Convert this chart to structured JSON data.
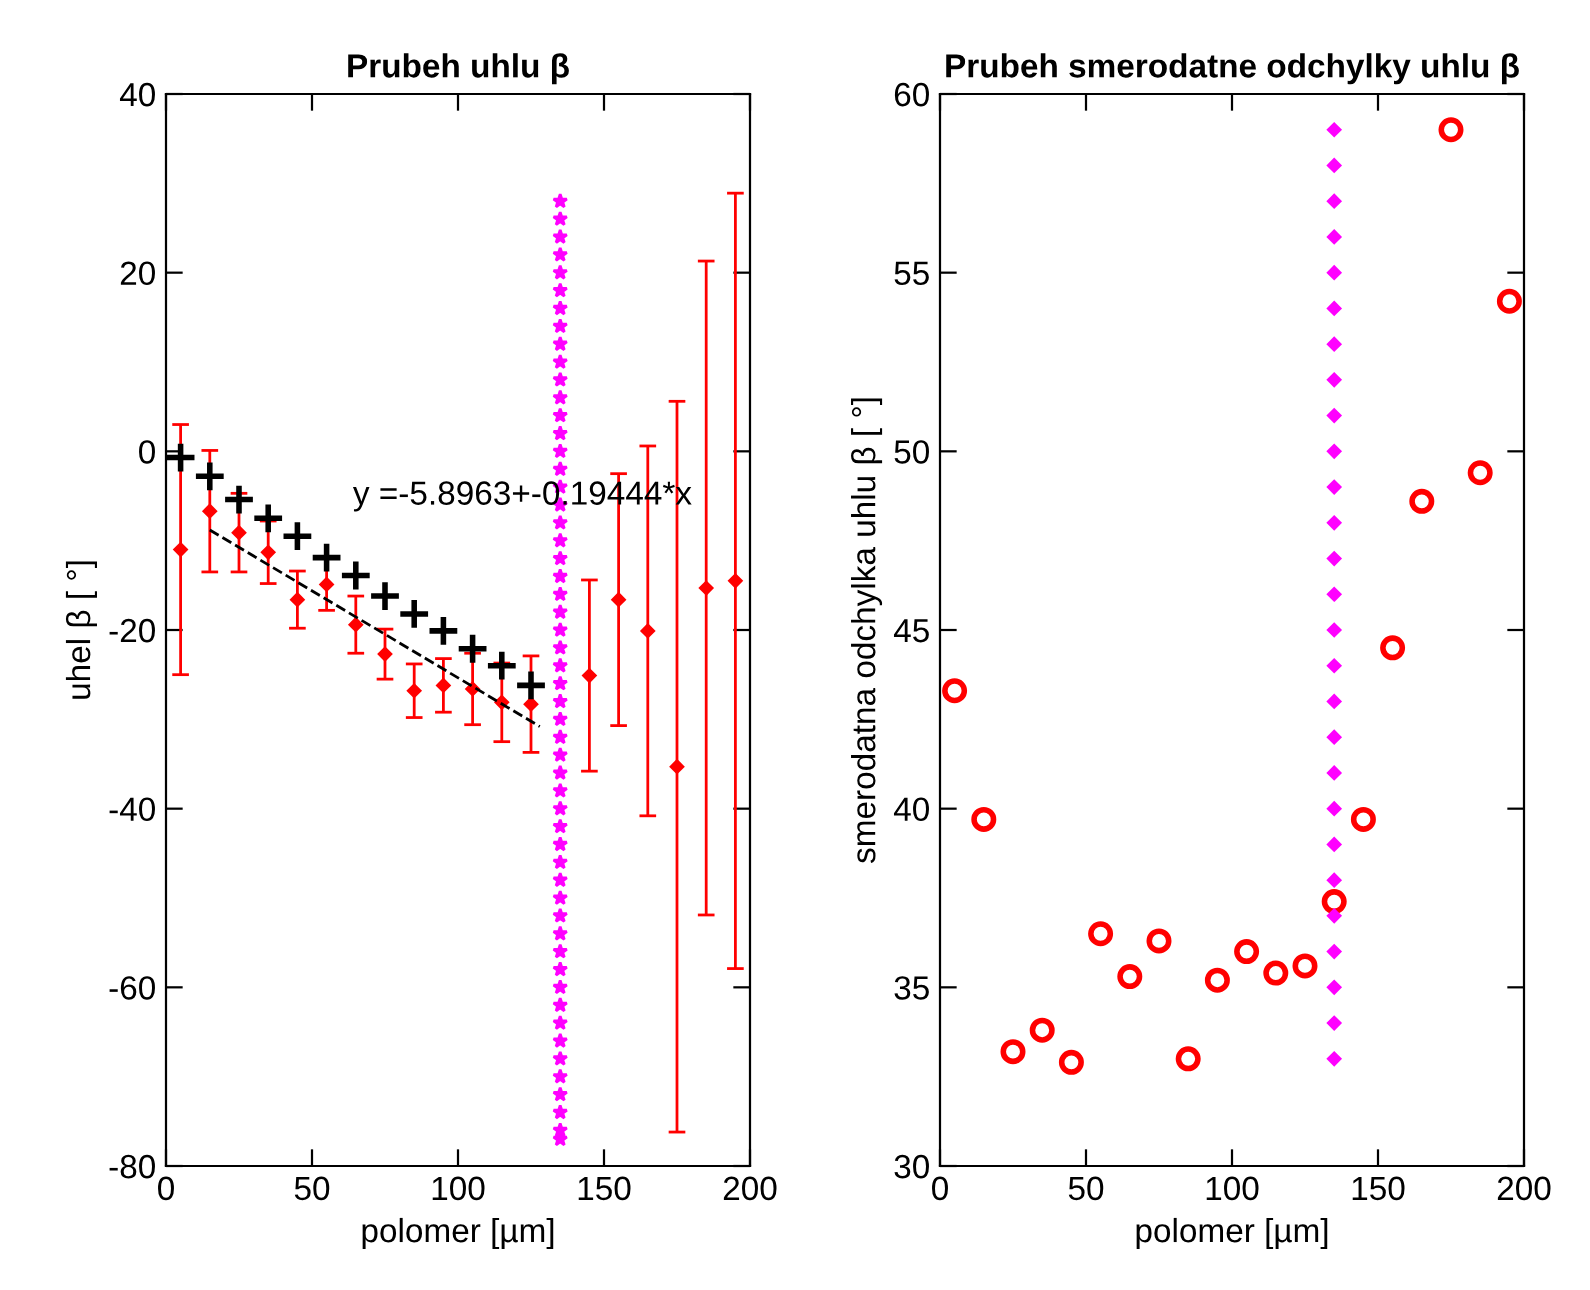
{
  "chart_data": [
    {
      "type": "scatter",
      "title": "Prubeh uhlu β",
      "xlabel": "polomer [µm]",
      "ylabel": "uhel β [ °]",
      "xlim": [
        0,
        200
      ],
      "xticks": [
        0,
        50,
        100,
        150,
        200
      ],
      "ylim": [
        -80,
        40
      ],
      "yticks": [
        -80,
        -60,
        -40,
        -20,
        0,
        20,
        40
      ],
      "grid": false,
      "annotations": [
        "y =-5.8963+-0.19444*x"
      ],
      "series": [
        {
          "marker": "diamond",
          "color": "#ff0000",
          "x": [
            5,
            15,
            25,
            35,
            45,
            55,
            65,
            75,
            85,
            95,
            105,
            115,
            125,
            135,
            145,
            155,
            165,
            175,
            185,
            195
          ],
          "values": [
            -11,
            -6.7,
            -9.1,
            -11.3,
            -16.6,
            -14.9,
            -19.4,
            -22.7,
            -26.8,
            -26.2,
            -26.6,
            -28.1,
            -28.3,
            null,
            -25.1,
            -16.6,
            -20.1,
            -35.3,
            -15.3,
            -14.5
          ],
          "errors": [
            14,
            6.8,
            4.4,
            3.5,
            3.2,
            2.9,
            3.2,
            2.8,
            3,
            3,
            4,
            4.4,
            5.4,
            null,
            10.7,
            14.1,
            20.7,
            40.9,
            36.6,
            43.4
          ]
        },
        {
          "marker": "cross",
          "color": "#000000",
          "x": [
            5,
            15,
            25,
            35,
            45,
            55,
            65,
            75,
            85,
            95,
            105,
            115,
            125
          ],
          "values": [
            -0.7,
            -2.8,
            -5.4,
            -7.5,
            -9.5,
            -11.9,
            -13.9,
            -16.2,
            -18.2,
            -20.1,
            -22.1,
            -24.0,
            -26.2
          ]
        },
        {
          "type": "line",
          "line_style": "dashed",
          "color": "#000000",
          "x": [
            15,
            128
          ],
          "values": [
            -8.8,
            -30.8
          ]
        },
        {
          "marker": "star",
          "color": "#ff00ff",
          "x": [
            135,
            135,
            135,
            135,
            135,
            135,
            135,
            135,
            135,
            135,
            135,
            135,
            135,
            135,
            135,
            135,
            135,
            135,
            135,
            135,
            135,
            135,
            135,
            135,
            135,
            135,
            135,
            135,
            135,
            135,
            135,
            135,
            135,
            135,
            135,
            135,
            135,
            135,
            135,
            135,
            135,
            135,
            135,
            135,
            135,
            135,
            135,
            135,
            135,
            135,
            135,
            135,
            135,
            135
          ],
          "values": [
            28,
            26,
            24,
            22,
            20,
            18,
            16,
            14,
            12,
            10,
            8,
            6,
            4,
            2,
            0,
            -2,
            -4,
            -6,
            -8,
            -10,
            -12,
            -14,
            -16,
            -18,
            -20,
            -22,
            -24,
            -26,
            -28,
            -30,
            -32,
            -34,
            -36,
            -38,
            -40,
            -42,
            -44,
            -46,
            -48,
            -50,
            -52,
            -54,
            -56,
            -58,
            -60,
            -62,
            -64,
            -66,
            -68,
            -70,
            -72,
            -74,
            -76,
            -77
          ]
        }
      ]
    },
    {
      "type": "scatter",
      "title": "Prubeh smerodatne odchylky uhlu β",
      "xlabel": "polomer [µm]",
      "ylabel": "smerodatna odchylka uhlu β [ °]",
      "xlim": [
        0,
        200
      ],
      "xticks": [
        0,
        50,
        100,
        150,
        200
      ],
      "ylim": [
        30,
        60
      ],
      "yticks": [
        30,
        35,
        40,
        45,
        50,
        55,
        60
      ],
      "grid": false,
      "series": [
        {
          "marker": "circle",
          "color": "#ff0000",
          "x": [
            5,
            15,
            25,
            35,
            45,
            55,
            65,
            75,
            85,
            95,
            105,
            115,
            125,
            135,
            145,
            155,
            165,
            175,
            185,
            195
          ],
          "values": [
            43.3,
            39.7,
            33.2,
            33.8,
            32.9,
            36.5,
            35.3,
            36.3,
            33.0,
            35.2,
            36.0,
            35.4,
            35.6,
            37.4,
            39.7,
            44.5,
            48.6,
            59.0,
            49.4,
            54.2
          ]
        },
        {
          "marker": "diamond",
          "color": "#ff00ff",
          "x": [
            135,
            135,
            135,
            135,
            135,
            135,
            135,
            135,
            135,
            135,
            135,
            135,
            135,
            135,
            135,
            135,
            135,
            135,
            135,
            135,
            135,
            135,
            135,
            135,
            135,
            135,
            135
          ],
          "values": [
            59,
            58,
            57,
            56,
            55,
            54,
            53,
            52,
            51,
            50,
            49,
            48,
            47,
            46,
            45,
            44,
            43,
            42,
            41,
            40,
            39,
            38,
            37,
            36,
            35,
            34,
            33
          ]
        }
      ]
    }
  ]
}
